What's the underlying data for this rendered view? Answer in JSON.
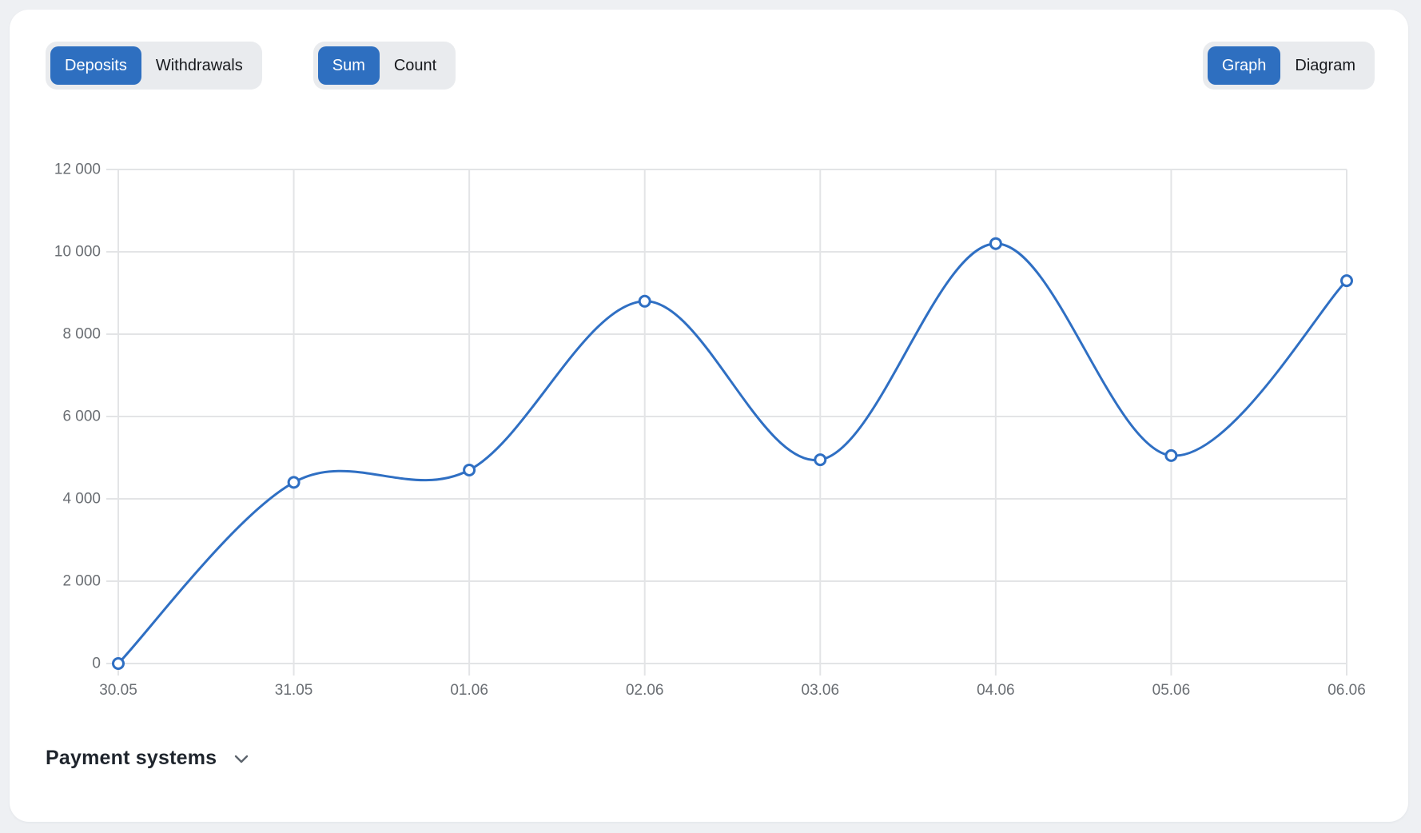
{
  "page": {
    "background": "#eef0f3",
    "card_background": "#ffffff"
  },
  "colors": {
    "accent": "#2e6fc0",
    "toggle_track": "#e9ebee",
    "toggle_inactive_text": "#17191d",
    "grid": "#e3e4e6",
    "axis_text": "#6a6e73"
  },
  "toggles": {
    "transaction_type": {
      "options": [
        {
          "label": "Deposits",
          "active": true
        },
        {
          "label": "Withdrawals",
          "active": false
        }
      ]
    },
    "aggregation": {
      "options": [
        {
          "label": "Sum",
          "active": true
        },
        {
          "label": "Count",
          "active": false
        }
      ]
    },
    "view_mode": {
      "options": [
        {
          "label": "Graph",
          "active": true
        },
        {
          "label": "Diagram",
          "active": false
        }
      ]
    }
  },
  "chart_data": {
    "type": "line",
    "title": "",
    "categories": [
      "30.05",
      "31.05",
      "01.06",
      "02.06",
      "03.06",
      "04.06",
      "05.06",
      "06.06"
    ],
    "series": [
      {
        "name": "Deposits Sum",
        "values": [
          0,
          4400,
          4700,
          8800,
          4950,
          10200,
          5050,
          9300
        ]
      }
    ],
    "ylim": [
      0,
      12000
    ],
    "y_ticks": [
      {
        "value": 0,
        "label": "0"
      },
      {
        "value": 2000,
        "label": "2 000"
      },
      {
        "value": 4000,
        "label": "4 000"
      },
      {
        "value": 6000,
        "label": "6 000"
      },
      {
        "value": 8000,
        "label": "8 000"
      },
      {
        "value": 10000,
        "label": "10 000"
      },
      {
        "value": 12000,
        "label": "12 000"
      }
    ],
    "grid": true,
    "legend": "none",
    "curve": "smooth",
    "line_color": "#2f6fc3",
    "point_style": "hollow-circle",
    "grid_color": "#e3e4e6",
    "axis_text_color": "#6a6e73"
  },
  "payment_systems": {
    "title": "Payment systems",
    "icon": "chevron-down-icon"
  }
}
